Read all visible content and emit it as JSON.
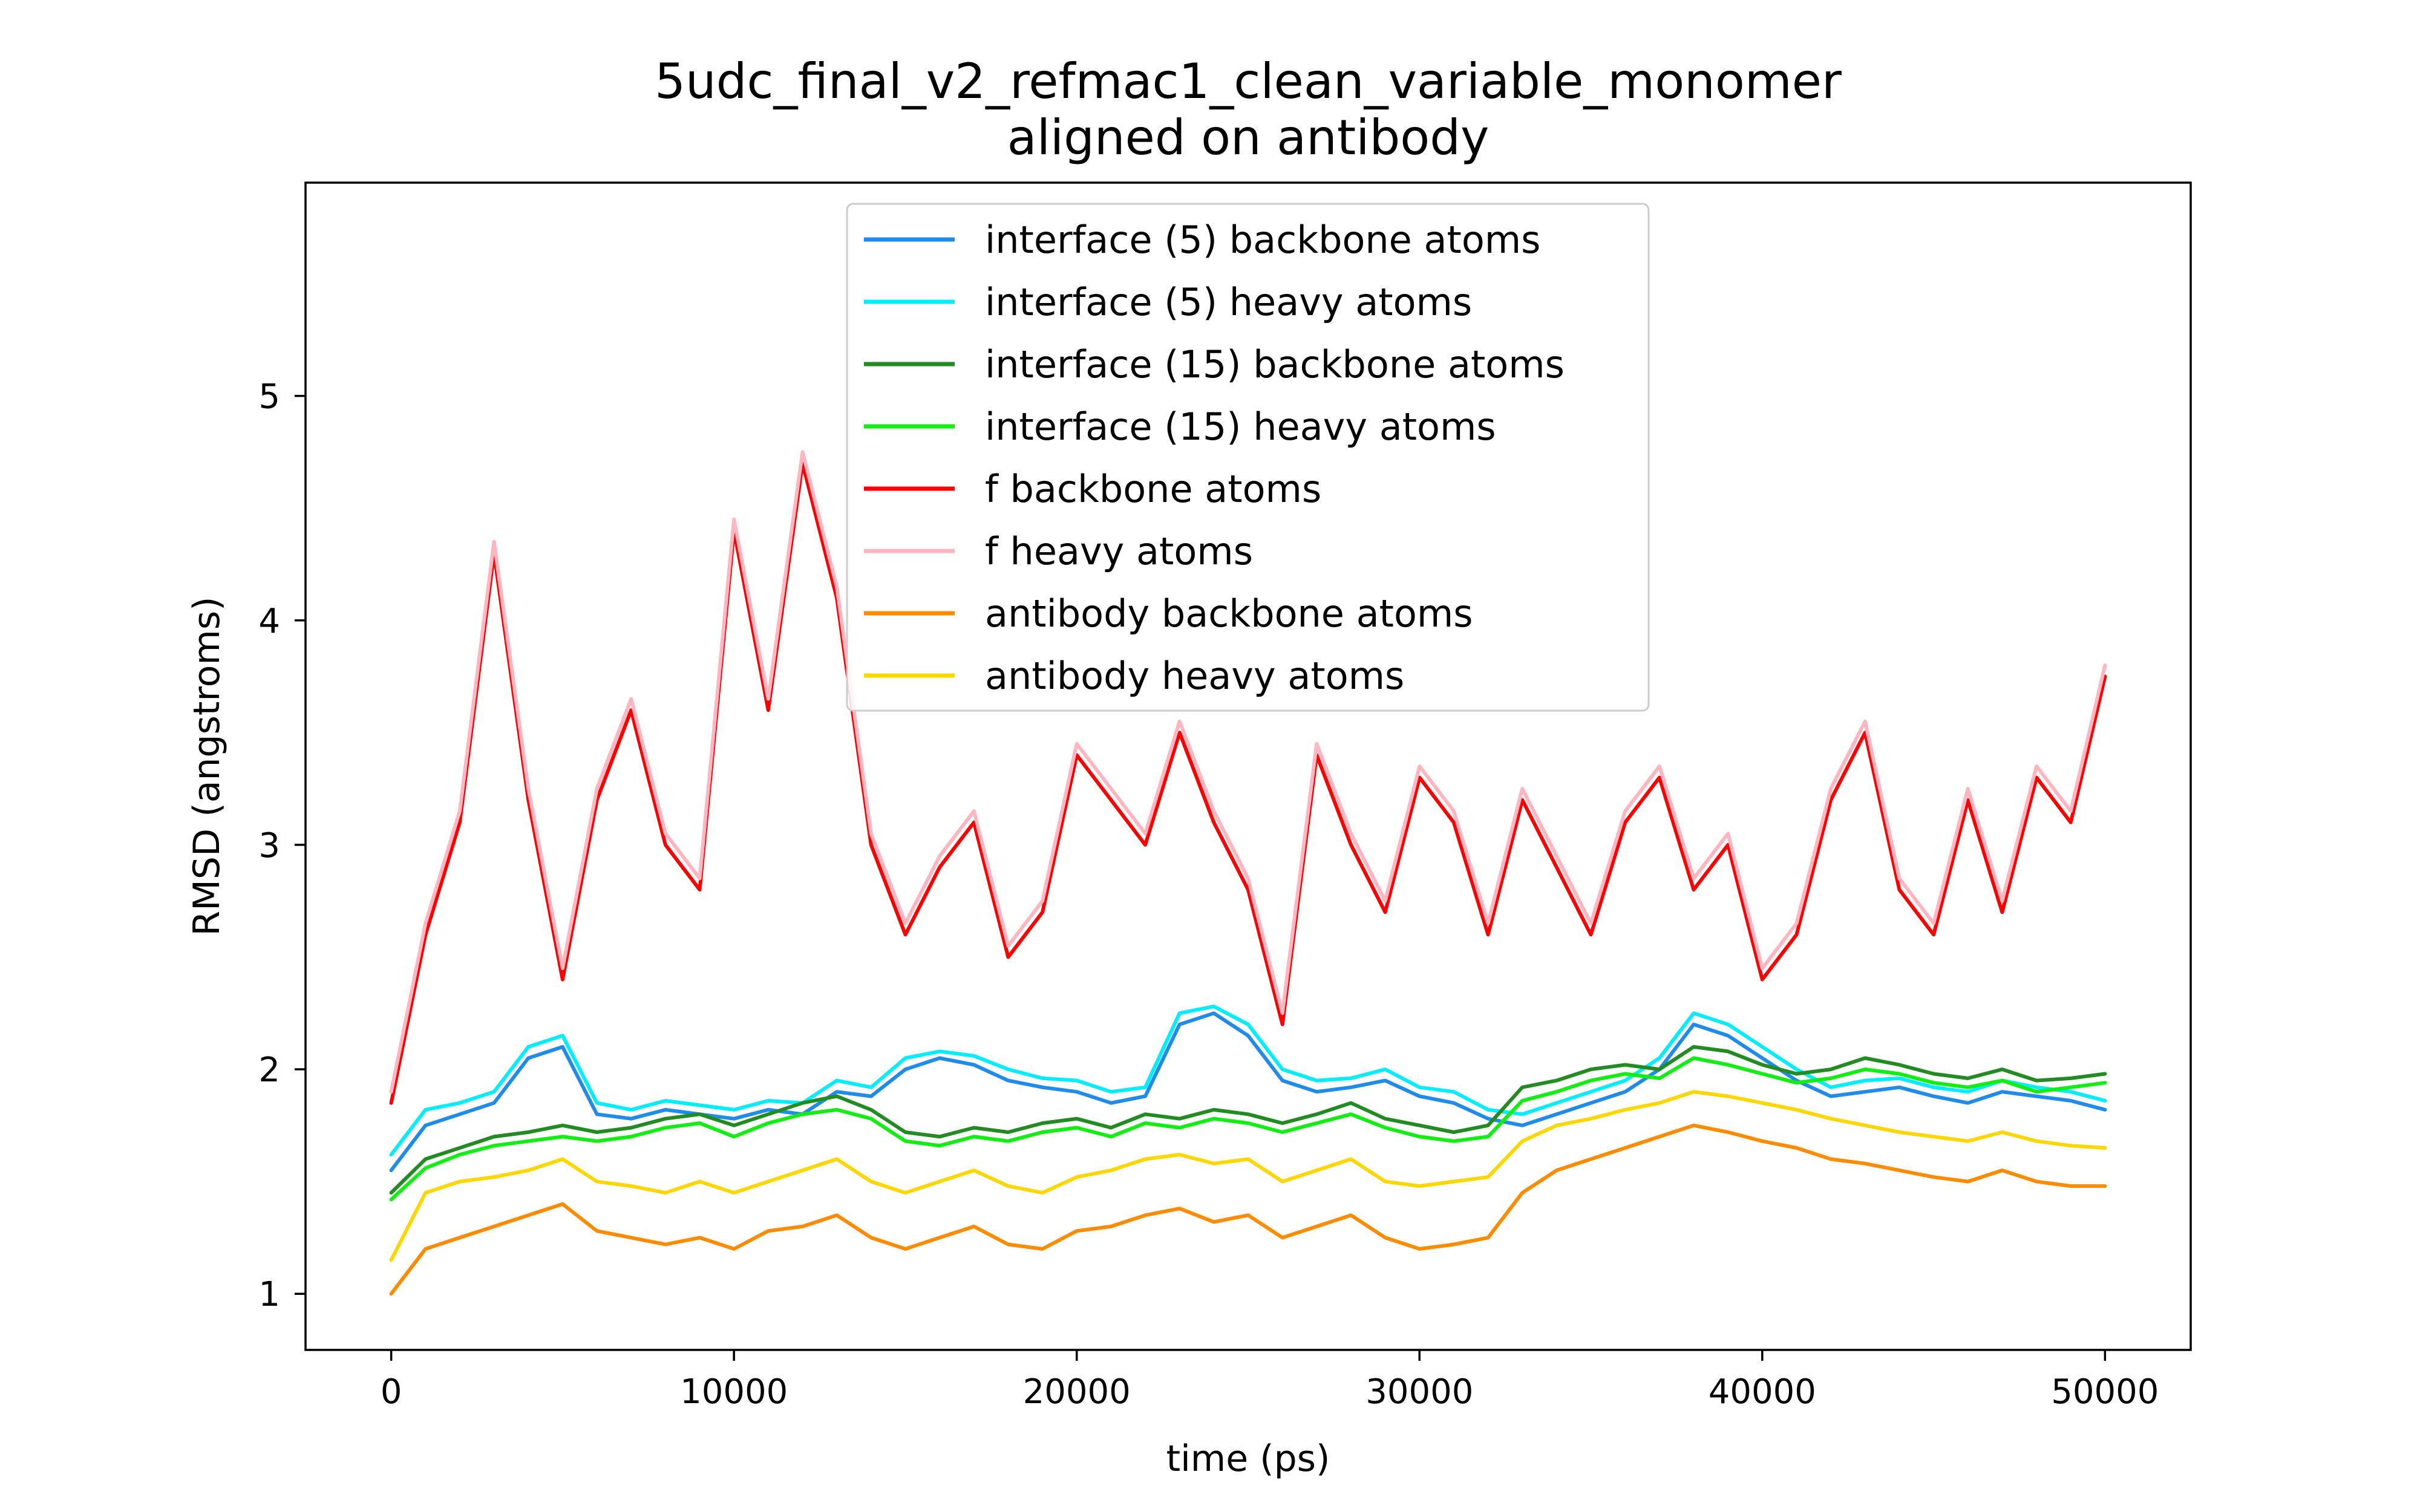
{
  "chart_data": {
    "type": "line",
    "title": "5udc_final_v2_refmac1_clean_variable_monomer",
    "subtitle": "aligned on antibody",
    "xlabel": "time (ps)",
    "ylabel": "RMSD (angstroms)",
    "xlim": [
      -2500,
      52500
    ],
    "ylim": [
      0.75,
      5.95
    ],
    "xticks": [
      "0",
      "10000",
      "20000",
      "30000",
      "40000",
      "50000"
    ],
    "yticks": [
      "1",
      "2",
      "3",
      "4",
      "5"
    ],
    "grid": false,
    "legend_position": "top-center",
    "series": [
      {
        "name": "interface (5) backbone atoms",
        "color": "#1f8ceb",
        "x": [
          0,
          1000,
          2000,
          3000,
          4000,
          5000,
          6000,
          7000,
          8000,
          9000,
          10000,
          11000,
          12000,
          13000,
          14000,
          15000,
          16000,
          17000,
          18000,
          19000,
          20000,
          21000,
          22000,
          23000,
          24000,
          25000,
          26000,
          27000,
          28000,
          29000,
          30000,
          31000,
          32000,
          33000,
          34000,
          35000,
          36000,
          37000,
          38000,
          39000,
          40000,
          41000,
          42000,
          43000,
          44000,
          45000,
          46000,
          47000,
          48000,
          49000,
          50000
        ],
        "y": [
          1.55,
          1.75,
          1.8,
          1.85,
          2.05,
          2.1,
          1.8,
          1.78,
          1.82,
          1.8,
          1.78,
          1.82,
          1.8,
          1.9,
          1.88,
          2.0,
          2.05,
          2.02,
          1.95,
          1.92,
          1.9,
          1.85,
          1.88,
          2.2,
          2.25,
          2.15,
          1.95,
          1.9,
          1.92,
          1.95,
          1.88,
          1.85,
          1.78,
          1.75,
          1.8,
          1.85,
          1.9,
          2.0,
          2.2,
          2.15,
          2.05,
          1.95,
          1.88,
          1.9,
          1.92,
          1.88,
          1.85,
          1.9,
          1.88,
          1.86,
          1.82
        ]
      },
      {
        "name": "interface (5) heavy atoms",
        "color": "#00eeff",
        "x": [
          0,
          1000,
          2000,
          3000,
          4000,
          5000,
          6000,
          7000,
          8000,
          9000,
          10000,
          11000,
          12000,
          13000,
          14000,
          15000,
          16000,
          17000,
          18000,
          19000,
          20000,
          21000,
          22000,
          23000,
          24000,
          25000,
          26000,
          27000,
          28000,
          29000,
          30000,
          31000,
          32000,
          33000,
          34000,
          35000,
          36000,
          37000,
          38000,
          39000,
          40000,
          41000,
          42000,
          43000,
          44000,
          45000,
          46000,
          47000,
          48000,
          49000,
          50000
        ],
        "y": [
          1.62,
          1.82,
          1.85,
          1.9,
          2.1,
          2.15,
          1.85,
          1.82,
          1.86,
          1.84,
          1.82,
          1.86,
          1.85,
          1.95,
          1.92,
          2.05,
          2.08,
          2.06,
          2.0,
          1.96,
          1.95,
          1.9,
          1.92,
          2.25,
          2.28,
          2.2,
          2.0,
          1.95,
          1.96,
          2.0,
          1.92,
          1.9,
          1.82,
          1.8,
          1.85,
          1.9,
          1.95,
          2.05,
          2.25,
          2.2,
          2.1,
          2.0,
          1.92,
          1.95,
          1.96,
          1.92,
          1.9,
          1.95,
          1.92,
          1.9,
          1.86
        ]
      },
      {
        "name": "interface (15) backbone atoms",
        "color": "#228b22",
        "x": [
          0,
          1000,
          2000,
          3000,
          4000,
          5000,
          6000,
          7000,
          8000,
          9000,
          10000,
          11000,
          12000,
          13000,
          14000,
          15000,
          16000,
          17000,
          18000,
          19000,
          20000,
          21000,
          22000,
          23000,
          24000,
          25000,
          26000,
          27000,
          28000,
          29000,
          30000,
          31000,
          32000,
          33000,
          34000,
          35000,
          36000,
          37000,
          38000,
          39000,
          40000,
          41000,
          42000,
          43000,
          44000,
          45000,
          46000,
          47000,
          48000,
          49000,
          50000
        ],
        "y": [
          1.45,
          1.6,
          1.65,
          1.7,
          1.72,
          1.75,
          1.72,
          1.74,
          1.78,
          1.8,
          1.75,
          1.8,
          1.85,
          1.88,
          1.82,
          1.72,
          1.7,
          1.74,
          1.72,
          1.76,
          1.78,
          1.74,
          1.8,
          1.78,
          1.82,
          1.8,
          1.76,
          1.8,
          1.85,
          1.78,
          1.75,
          1.72,
          1.75,
          1.92,
          1.95,
          2.0,
          2.02,
          2.0,
          2.1,
          2.08,
          2.02,
          1.98,
          2.0,
          2.05,
          2.02,
          1.98,
          1.96,
          2.0,
          1.95,
          1.96,
          1.98
        ]
      },
      {
        "name": "interface (15) heavy atoms",
        "color": "#11ee11",
        "x": [
          0,
          1000,
          2000,
          3000,
          4000,
          5000,
          6000,
          7000,
          8000,
          9000,
          10000,
          11000,
          12000,
          13000,
          14000,
          15000,
          16000,
          17000,
          18000,
          19000,
          20000,
          21000,
          22000,
          23000,
          24000,
          25000,
          26000,
          27000,
          28000,
          29000,
          30000,
          31000,
          32000,
          33000,
          34000,
          35000,
          36000,
          37000,
          38000,
          39000,
          40000,
          41000,
          42000,
          43000,
          44000,
          45000,
          46000,
          47000,
          48000,
          49000,
          50000
        ],
        "y": [
          1.42,
          1.56,
          1.62,
          1.66,
          1.68,
          1.7,
          1.68,
          1.7,
          1.74,
          1.76,
          1.7,
          1.76,
          1.8,
          1.82,
          1.78,
          1.68,
          1.66,
          1.7,
          1.68,
          1.72,
          1.74,
          1.7,
          1.76,
          1.74,
          1.78,
          1.76,
          1.72,
          1.76,
          1.8,
          1.74,
          1.7,
          1.68,
          1.7,
          1.86,
          1.9,
          1.95,
          1.98,
          1.96,
          2.05,
          2.02,
          1.98,
          1.94,
          1.96,
          2.0,
          1.98,
          1.94,
          1.92,
          1.95,
          1.9,
          1.92,
          1.94
        ]
      },
      {
        "name": "f backbone atoms",
        "color": "#ff0000",
        "x": [
          0,
          1000,
          2000,
          3000,
          4000,
          5000,
          6000,
          7000,
          8000,
          9000,
          10000,
          11000,
          12000,
          13000,
          14000,
          15000,
          16000,
          17000,
          18000,
          19000,
          20000,
          21000,
          22000,
          23000,
          24000,
          25000,
          26000,
          27000,
          28000,
          29000,
          30000,
          31000,
          32000,
          33000,
          34000,
          35000,
          36000,
          37000,
          38000,
          39000,
          40000,
          41000,
          42000,
          43000,
          44000,
          45000,
          46000,
          47000,
          48000,
          49000,
          50000
        ],
        "y": [
          1.85,
          2.6,
          3.1,
          4.3,
          3.2,
          2.4,
          3.2,
          3.6,
          3.0,
          2.8,
          4.4,
          3.6,
          4.7,
          4.1,
          3.0,
          2.6,
          2.9,
          3.1,
          2.5,
          2.7,
          3.4,
          3.2,
          3.0,
          3.5,
          3.1,
          2.8,
          2.2,
          3.4,
          3.0,
          2.7,
          3.3,
          3.1,
          2.6,
          3.2,
          2.9,
          2.6,
          3.1,
          3.3,
          2.8,
          3.0,
          2.4,
          2.6,
          3.2,
          3.5,
          2.8,
          2.6,
          3.2,
          2.7,
          3.3,
          3.1,
          3.75
        ]
      },
      {
        "name": "f heavy atoms",
        "color": "#ffb6c1",
        "x": [
          0,
          1000,
          2000,
          3000,
          4000,
          5000,
          6000,
          7000,
          8000,
          9000,
          10000,
          11000,
          12000,
          13000,
          14000,
          15000,
          16000,
          17000,
          18000,
          19000,
          20000,
          21000,
          22000,
          23000,
          24000,
          25000,
          26000,
          27000,
          28000,
          29000,
          30000,
          31000,
          32000,
          33000,
          34000,
          35000,
          36000,
          37000,
          38000,
          39000,
          40000,
          41000,
          42000,
          43000,
          44000,
          45000,
          46000,
          47000,
          48000,
          49000,
          50000
        ],
        "y": [
          1.9,
          2.65,
          3.15,
          4.35,
          3.25,
          2.45,
          3.25,
          3.65,
          3.05,
          2.85,
          4.45,
          3.65,
          4.75,
          4.15,
          3.05,
          2.65,
          2.95,
          3.15,
          2.55,
          2.75,
          3.45,
          3.25,
          3.05,
          3.55,
          3.15,
          2.85,
          2.25,
          3.45,
          3.05,
          2.75,
          3.35,
          3.15,
          2.65,
          3.25,
          2.95,
          2.65,
          3.15,
          3.35,
          2.85,
          3.05,
          2.45,
          2.65,
          3.25,
          3.55,
          2.85,
          2.65,
          3.25,
          2.75,
          3.35,
          3.15,
          3.8
        ]
      },
      {
        "name": "antibody backbone atoms",
        "color": "#ff8c00",
        "x": [
          0,
          1000,
          2000,
          3000,
          4000,
          5000,
          6000,
          7000,
          8000,
          9000,
          10000,
          11000,
          12000,
          13000,
          14000,
          15000,
          16000,
          17000,
          18000,
          19000,
          20000,
          21000,
          22000,
          23000,
          24000,
          25000,
          26000,
          27000,
          28000,
          29000,
          30000,
          31000,
          32000,
          33000,
          34000,
          35000,
          36000,
          37000,
          38000,
          39000,
          40000,
          41000,
          42000,
          43000,
          44000,
          45000,
          46000,
          47000,
          48000,
          49000,
          50000
        ],
        "y": [
          1.0,
          1.2,
          1.25,
          1.3,
          1.35,
          1.4,
          1.28,
          1.25,
          1.22,
          1.25,
          1.2,
          1.28,
          1.3,
          1.35,
          1.25,
          1.2,
          1.25,
          1.3,
          1.22,
          1.2,
          1.28,
          1.3,
          1.35,
          1.38,
          1.32,
          1.35,
          1.25,
          1.3,
          1.35,
          1.25,
          1.2,
          1.22,
          1.25,
          1.45,
          1.55,
          1.6,
          1.65,
          1.7,
          1.75,
          1.72,
          1.68,
          1.65,
          1.6,
          1.58,
          1.55,
          1.52,
          1.5,
          1.55,
          1.5,
          1.48,
          1.48
        ]
      },
      {
        "name": "antibody heavy atoms",
        "color": "#ffd700",
        "x": [
          0,
          1000,
          2000,
          3000,
          4000,
          5000,
          6000,
          7000,
          8000,
          9000,
          10000,
          11000,
          12000,
          13000,
          14000,
          15000,
          16000,
          17000,
          18000,
          19000,
          20000,
          21000,
          22000,
          23000,
          24000,
          25000,
          26000,
          27000,
          28000,
          29000,
          30000,
          31000,
          32000,
          33000,
          34000,
          35000,
          36000,
          37000,
          38000,
          39000,
          40000,
          41000,
          42000,
          43000,
          44000,
          45000,
          46000,
          47000,
          48000,
          49000,
          50000
        ],
        "y": [
          1.15,
          1.45,
          1.5,
          1.52,
          1.55,
          1.6,
          1.5,
          1.48,
          1.45,
          1.5,
          1.45,
          1.5,
          1.55,
          1.6,
          1.5,
          1.45,
          1.5,
          1.55,
          1.48,
          1.45,
          1.52,
          1.55,
          1.6,
          1.62,
          1.58,
          1.6,
          1.5,
          1.55,
          1.6,
          1.5,
          1.48,
          1.5,
          1.52,
          1.68,
          1.75,
          1.78,
          1.82,
          1.85,
          1.9,
          1.88,
          1.85,
          1.82,
          1.78,
          1.75,
          1.72,
          1.7,
          1.68,
          1.72,
          1.68,
          1.66,
          1.65
        ]
      }
    ]
  }
}
